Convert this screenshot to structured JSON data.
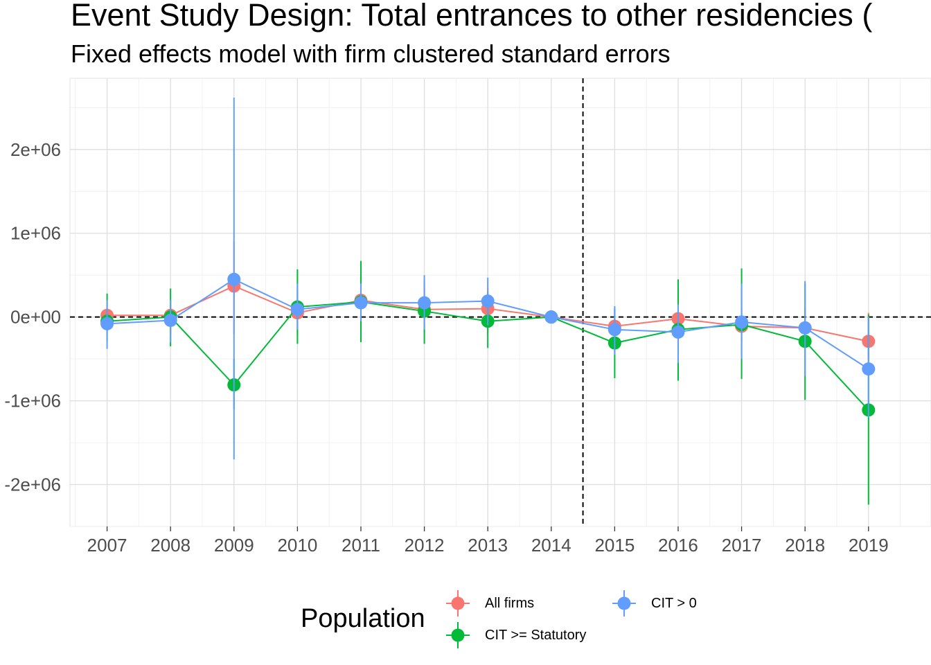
{
  "chart_data": {
    "type": "line",
    "title": "Event Study Design: Total entrances to other residencies (",
    "subtitle": "Fixed effects model with firm clustered standard errors",
    "xlabel": "",
    "ylabel": "",
    "categories": [
      "2007",
      "2008",
      "2009",
      "2010",
      "2011",
      "2012",
      "2013",
      "2014",
      "2015",
      "2016",
      "2017",
      "2018",
      "2019"
    ],
    "ylim": [
      -2500000,
      2850000
    ],
    "yticks": [
      -2000000,
      -1000000,
      0,
      1000000,
      2000000
    ],
    "ytick_labels": [
      "-2e+06",
      "-1e+06",
      "0e+00",
      "1e+06",
      "2e+06"
    ],
    "reference_lines": {
      "horizontal_y": 0,
      "vertical_between": [
        "2014",
        "2015"
      ],
      "style": "dashed"
    },
    "grid": true,
    "legend": {
      "title": "Population",
      "placement": "bottom"
    },
    "series": [
      {
        "name": "All firms",
        "color": "#F8766D",
        "values": [
          20000,
          20000,
          370000,
          50000,
          200000,
          90000,
          100000,
          0,
          -110000,
          -20000,
          -110000,
          -130000,
          -290000
        ],
        "lower": [
          -200000,
          -200000,
          -200000,
          -200000,
          -200000,
          -200000,
          -200000,
          0,
          -300000,
          -200000,
          -300000,
          -350000,
          -500000
        ],
        "upper": [
          200000,
          200000,
          900000,
          300000,
          500000,
          350000,
          350000,
          0,
          100000,
          150000,
          100000,
          100000,
          50000
        ]
      },
      {
        "name": "CIT >= Statutory",
        "color": "#00BA38",
        "values": [
          -50000,
          0,
          -810000,
          120000,
          180000,
          70000,
          -50000,
          0,
          -310000,
          -150000,
          -90000,
          -290000,
          -1110000
        ],
        "lower": [
          -300000,
          -350000,
          -1100000,
          -320000,
          -300000,
          -320000,
          -370000,
          0,
          -730000,
          -760000,
          -740000,
          -990000,
          -2240000
        ],
        "upper": [
          280000,
          340000,
          -500000,
          570000,
          670000,
          430000,
          300000,
          0,
          100000,
          450000,
          580000,
          400000,
          30000
        ]
      },
      {
        "name": "CIT > 0",
        "color": "#619CFF",
        "values": [
          -80000,
          -40000,
          450000,
          90000,
          170000,
          170000,
          190000,
          0,
          -150000,
          -180000,
          -60000,
          -130000,
          -620000
        ],
        "lower": [
          -380000,
          -300000,
          -1700000,
          -150000,
          -50000,
          -150000,
          -100000,
          0,
          -450000,
          -550000,
          -500000,
          -700000,
          -1200000
        ],
        "upper": [
          200000,
          200000,
          2620000,
          400000,
          400000,
          500000,
          470000,
          0,
          130000,
          150000,
          400000,
          430000,
          0
        ]
      }
    ]
  }
}
